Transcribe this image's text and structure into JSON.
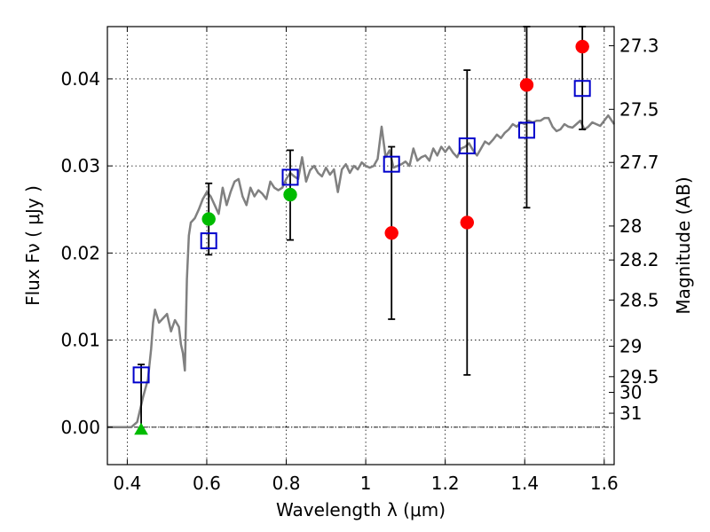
{
  "chart_data": {
    "type": "scatter",
    "xlabel": "Wavelength  λ (μm)",
    "ylabel": "Flux  Fν  ( μJy )",
    "ylabel_right": "Magnitude (AB)",
    "xlim": [
      0.35,
      1.625
    ],
    "ylim": [
      -0.0043,
      0.046
    ],
    "grid": true,
    "x_ticks": [
      0.4,
      0.6,
      0.8,
      1.0,
      1.2,
      1.4,
      1.6
    ],
    "x_tick_labels": [
      "0.4",
      "0.6",
      "0.8",
      "1",
      "1.2",
      "1.4",
      "1.6"
    ],
    "y_ticks": [
      0.0,
      0.01,
      0.02,
      0.03,
      0.04
    ],
    "y_tick_labels": [
      "0.00",
      "0.01",
      "0.02",
      "0.03",
      "0.04"
    ],
    "right_ticks": [
      {
        "label": "27.3",
        "flux": 0.0438
      },
      {
        "label": "27.5",
        "flux": 0.0365
      },
      {
        "label": "27.7",
        "flux": 0.0304
      },
      {
        "label": "28",
        "flux": 0.0231
      },
      {
        "label": "28.2",
        "flux": 0.0192
      },
      {
        "label": "28.5",
        "flux": 0.0146
      },
      {
        "label": "29",
        "flux": 0.0093
      },
      {
        "label": "29.5",
        "flux": 0.0058
      },
      {
        "label": "30",
        "flux": 0.004
      },
      {
        "label": "31",
        "flux": 0.0016
      }
    ],
    "model_spectrum": {
      "color": "#808080",
      "points": [
        [
          0.35,
          0.0
        ],
        [
          0.395,
          0.0
        ],
        [
          0.41,
          0.0
        ],
        [
          0.425,
          0.0006
        ],
        [
          0.44,
          0.0035
        ],
        [
          0.452,
          0.0055
        ],
        [
          0.46,
          0.009
        ],
        [
          0.465,
          0.012
        ],
        [
          0.47,
          0.0135
        ],
        [
          0.48,
          0.012
        ],
        [
          0.49,
          0.0125
        ],
        [
          0.5,
          0.013
        ],
        [
          0.51,
          0.011
        ],
        [
          0.52,
          0.0123
        ],
        [
          0.53,
          0.0115
        ],
        [
          0.535,
          0.0095
        ],
        [
          0.54,
          0.0085
        ],
        [
          0.545,
          0.0065
        ],
        [
          0.55,
          0.017
        ],
        [
          0.555,
          0.022
        ],
        [
          0.56,
          0.0235
        ],
        [
          0.57,
          0.024
        ],
        [
          0.58,
          0.025
        ],
        [
          0.59,
          0.0262
        ],
        [
          0.6,
          0.027
        ],
        [
          0.61,
          0.0265
        ],
        [
          0.62,
          0.0255
        ],
        [
          0.63,
          0.0245
        ],
        [
          0.64,
          0.0275
        ],
        [
          0.65,
          0.0255
        ],
        [
          0.66,
          0.027
        ],
        [
          0.67,
          0.0282
        ],
        [
          0.68,
          0.0285
        ],
        [
          0.69,
          0.0265
        ],
        [
          0.7,
          0.0255
        ],
        [
          0.71,
          0.0275
        ],
        [
          0.72,
          0.0265
        ],
        [
          0.73,
          0.0272
        ],
        [
          0.74,
          0.0268
        ],
        [
          0.75,
          0.0262
        ],
        [
          0.76,
          0.0282
        ],
        [
          0.77,
          0.0275
        ],
        [
          0.78,
          0.0272
        ],
        [
          0.79,
          0.0275
        ],
        [
          0.8,
          0.0285
        ],
        [
          0.81,
          0.0292
        ],
        [
          0.82,
          0.0288
        ],
        [
          0.83,
          0.0285
        ],
        [
          0.84,
          0.031
        ],
        [
          0.85,
          0.0282
        ],
        [
          0.86,
          0.0295
        ],
        [
          0.87,
          0.03
        ],
        [
          0.88,
          0.0292
        ],
        [
          0.89,
          0.0288
        ],
        [
          0.9,
          0.0298
        ],
        [
          0.91,
          0.029
        ],
        [
          0.92,
          0.0296
        ],
        [
          0.93,
          0.027
        ],
        [
          0.94,
          0.0296
        ],
        [
          0.95,
          0.0302
        ],
        [
          0.96,
          0.0292
        ],
        [
          0.97,
          0.03
        ],
        [
          0.98,
          0.0296
        ],
        [
          0.99,
          0.0304
        ],
        [
          1.0,
          0.03
        ],
        [
          1.01,
          0.0298
        ],
        [
          1.02,
          0.03
        ],
        [
          1.03,
          0.0308
        ],
        [
          1.04,
          0.0345
        ],
        [
          1.05,
          0.031
        ],
        [
          1.06,
          0.0318
        ],
        [
          1.07,
          0.0298
        ],
        [
          1.08,
          0.03
        ],
        [
          1.09,
          0.0302
        ],
        [
          1.1,
          0.0305
        ],
        [
          1.11,
          0.03
        ],
        [
          1.12,
          0.032
        ],
        [
          1.13,
          0.0306
        ],
        [
          1.14,
          0.031
        ],
        [
          1.15,
          0.0312
        ],
        [
          1.16,
          0.0306
        ],
        [
          1.17,
          0.032
        ],
        [
          1.18,
          0.0312
        ],
        [
          1.19,
          0.0322
        ],
        [
          1.2,
          0.0316
        ],
        [
          1.21,
          0.0322
        ],
        [
          1.22,
          0.0315
        ],
        [
          1.23,
          0.031
        ],
        [
          1.24,
          0.032
        ],
        [
          1.25,
          0.0322
        ],
        [
          1.26,
          0.0326
        ],
        [
          1.27,
          0.0318
        ],
        [
          1.28,
          0.0312
        ],
        [
          1.29,
          0.032
        ],
        [
          1.3,
          0.0328
        ],
        [
          1.31,
          0.0325
        ],
        [
          1.32,
          0.033
        ],
        [
          1.33,
          0.0336
        ],
        [
          1.34,
          0.0332
        ],
        [
          1.35,
          0.0338
        ],
        [
          1.36,
          0.0342
        ],
        [
          1.37,
          0.0348
        ],
        [
          1.38,
          0.0345
        ],
        [
          1.39,
          0.035
        ],
        [
          1.4,
          0.0348
        ],
        [
          1.41,
          0.0352
        ],
        [
          1.42,
          0.035
        ],
        [
          1.43,
          0.0352
        ],
        [
          1.44,
          0.0352
        ],
        [
          1.45,
          0.0355
        ],
        [
          1.46,
          0.0355
        ],
        [
          1.47,
          0.0345
        ],
        [
          1.48,
          0.034
        ],
        [
          1.49,
          0.0342
        ],
        [
          1.5,
          0.0348
        ],
        [
          1.51,
          0.0345
        ],
        [
          1.52,
          0.0344
        ],
        [
          1.53,
          0.0348
        ],
        [
          1.54,
          0.0352
        ],
        [
          1.55,
          0.0342
        ],
        [
          1.56,
          0.0345
        ],
        [
          1.57,
          0.035
        ],
        [
          1.58,
          0.0348
        ],
        [
          1.59,
          0.0346
        ],
        [
          1.6,
          0.0352
        ],
        [
          1.61,
          0.0358
        ],
        [
          1.625,
          0.0348
        ]
      ]
    },
    "series": [
      {
        "marker": "open-square",
        "color": "#0000cc",
        "points": [
          {
            "x": 0.435,
            "y": 0.006
          },
          {
            "x": 0.605,
            "y": 0.0214
          },
          {
            "x": 0.81,
            "y": 0.0287
          },
          {
            "x": 1.065,
            "y": 0.0302
          },
          {
            "x": 1.255,
            "y": 0.0323
          },
          {
            "x": 1.405,
            "y": 0.0341
          },
          {
            "x": 1.545,
            "y": 0.0389
          }
        ]
      },
      {
        "marker": "filled-circle",
        "color": "#00bb00",
        "points": [
          {
            "x": 0.605,
            "y": 0.0239,
            "yerr_low": 0.0198,
            "yerr_high": 0.028
          },
          {
            "x": 0.81,
            "y": 0.0267,
            "yerr_low": 0.0215,
            "yerr_high": 0.0318
          }
        ]
      },
      {
        "marker": "filled-triangle",
        "color": "#00bb00",
        "points": [
          {
            "x": 0.435,
            "y": -0.0003,
            "yerr_low": -0.0003,
            "yerr_high": 0.0072
          }
        ]
      },
      {
        "marker": "filled-circle",
        "color": "#ff0000",
        "points": [
          {
            "x": 1.065,
            "y": 0.0223,
            "yerr_low": 0.0124,
            "yerr_high": 0.0322
          },
          {
            "x": 1.255,
            "y": 0.0235,
            "yerr_low": 0.006,
            "yerr_high": 0.041
          },
          {
            "x": 1.405,
            "y": 0.0393,
            "yerr_low": 0.0252,
            "yerr_high": 0.046
          },
          {
            "x": 1.545,
            "y": 0.0437,
            "yerr_low": 0.0342,
            "yerr_high": 0.046
          }
        ]
      }
    ],
    "zero_line": {
      "y": 0.0,
      "style": "dash-dot",
      "color": "#000000"
    }
  }
}
